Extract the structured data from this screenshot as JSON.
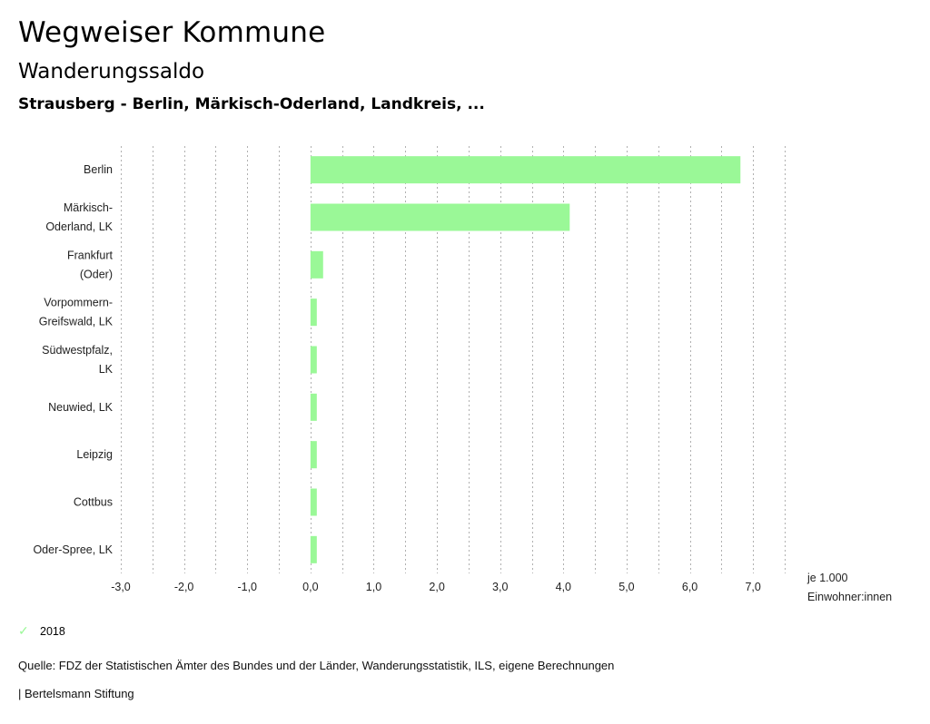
{
  "header": {
    "title": "Wegweiser Kommune",
    "subtitle": "Wanderungssaldo",
    "region": "Strausberg - Berlin, Märkisch-Oderland, Landkreis, ..."
  },
  "chart_data": {
    "type": "bar",
    "orientation": "horizontal",
    "title": "Wanderungssaldo",
    "subtitle": "Strausberg - Berlin, Märkisch-Oderland, Landkreis, ...",
    "categories": [
      [
        "Berlin"
      ],
      [
        "Märkisch-",
        "Oderland, LK"
      ],
      [
        "Frankfurt",
        "(Oder)"
      ],
      [
        "Vorpommern-",
        "Greifswald, LK"
      ],
      [
        "Südwestpfalz,",
        "LK"
      ],
      [
        "Neuwied, LK"
      ],
      [
        "Leipzig"
      ],
      [
        "Cottbus"
      ],
      [
        "Oder-Spree, LK"
      ]
    ],
    "series": [
      {
        "name": "2018",
        "color": "#9af897",
        "values": [
          6.8,
          4.1,
          0.2,
          0.1,
          0.1,
          0.1,
          0.1,
          0.1,
          0.1
        ]
      }
    ],
    "xlim": [
      -3.0,
      7.5
    ],
    "xticks": [
      -3,
      -2,
      -1,
      0,
      1,
      2,
      3,
      4,
      5,
      6,
      7
    ],
    "xtick_labels": [
      "-3,0",
      "-2,0",
      "-1,0",
      "0,0",
      "1,0",
      "2,0",
      "3,0",
      "4,0",
      "5,0",
      "6,0",
      "7,0"
    ],
    "gridline_step": 0.5,
    "grid": true,
    "xlabel": [
      "je 1.000",
      "Einwohner:innen"
    ],
    "ylabel": "",
    "legend_position": "bottom-left"
  },
  "legend": {
    "items": [
      {
        "label": "2018",
        "icon": "check-icon",
        "color": "#9af897"
      }
    ]
  },
  "footer": {
    "source": "Quelle: FDZ der Statistischen Ämter des Bundes und der Länder, Wanderungsstatistik, ILS, eigene Berechnungen",
    "publisher": "| Bertelsmann Stiftung"
  }
}
